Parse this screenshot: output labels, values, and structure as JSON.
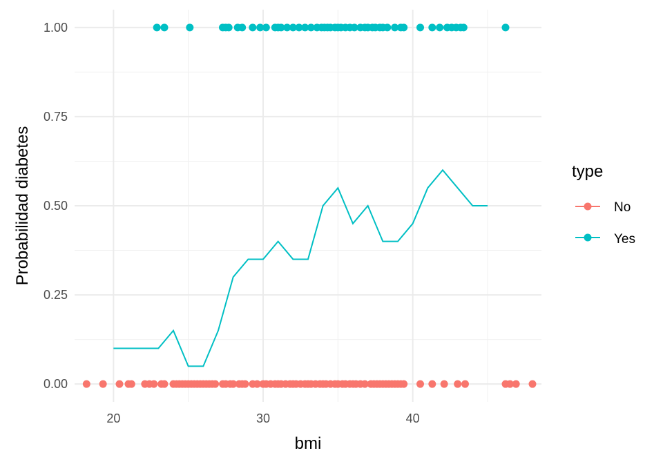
{
  "chart_data": {
    "type": "scatter",
    "xlabel": "bmi",
    "ylabel": "Probabilidad diabetes",
    "xlim": [
      17.4,
      48.6
    ],
    "ylim": [
      -0.05,
      1.05
    ],
    "x_ticks": [
      20,
      30,
      40
    ],
    "x_tick_labels": [
      "20",
      "30",
      "40"
    ],
    "y_ticks": [
      0,
      0.25,
      0.5,
      0.75,
      1.0
    ],
    "y_tick_labels": [
      "0.00",
      "0.25",
      "0.50",
      "0.75",
      "1.00"
    ],
    "grid": true,
    "legend": {
      "title": "type",
      "placement": "right",
      "entries": [
        {
          "label": "No",
          "color": "#F8766D"
        },
        {
          "label": "Yes",
          "color": "#00BFC4"
        }
      ]
    },
    "series": [
      {
        "name": "No",
        "kind": "points",
        "color": "#F8766D",
        "y": 0,
        "x": [
          18.2,
          19.3,
          20.4,
          21.0,
          21.2,
          22.1,
          22.4,
          22.7,
          23.2,
          23.4,
          24.0,
          24.2,
          24.4,
          24.6,
          24.8,
          25.0,
          25.2,
          25.4,
          25.6,
          25.8,
          26.0,
          26.2,
          26.4,
          26.6,
          26.8,
          27.3,
          27.5,
          27.8,
          28.0,
          28.4,
          28.6,
          28.8,
          29.3,
          29.6,
          30.0,
          30.2,
          30.5,
          30.8,
          31.0,
          31.2,
          31.5,
          31.8,
          32.0,
          32.2,
          32.5,
          32.8,
          33.0,
          33.2,
          33.5,
          33.8,
          34.0,
          34.2,
          34.5,
          34.8,
          35.0,
          35.3,
          35.5,
          35.8,
          36.0,
          36.2,
          36.5,
          36.8,
          37.2,
          37.4,
          37.6,
          37.8,
          38.0,
          38.2,
          38.4,
          38.6,
          38.8,
          39.0,
          39.2,
          39.4,
          40.5,
          41.3,
          42.1,
          43.0,
          43.5,
          46.2,
          46.5,
          46.9,
          48.0
        ]
      },
      {
        "name": "Yes",
        "kind": "points",
        "color": "#00BFC4",
        "y": 1,
        "x": [
          22.9,
          23.4,
          25.1,
          27.3,
          27.5,
          27.7,
          28.3,
          28.6,
          29.3,
          29.8,
          30.2,
          30.8,
          31.0,
          31.2,
          31.6,
          32.0,
          32.4,
          32.8,
          33.2,
          33.6,
          33.9,
          34.1,
          34.3,
          34.5,
          34.8,
          35.0,
          35.2,
          35.5,
          35.8,
          36.1,
          36.5,
          36.8,
          37.0,
          37.3,
          37.5,
          37.8,
          38.0,
          38.3,
          38.8,
          39.2,
          39.4,
          40.5,
          41.3,
          41.8,
          42.3,
          42.6,
          42.9,
          43.2,
          43.4,
          46.2
        ]
      },
      {
        "name": "",
        "kind": "line",
        "color": "#00BFC4",
        "x": [
          20,
          21,
          22,
          23,
          24,
          25,
          26,
          27,
          28,
          29,
          30,
          31,
          32,
          33,
          34,
          35,
          36,
          37,
          38,
          39,
          40,
          41,
          42,
          43,
          44,
          45
        ],
        "y": [
          0.1,
          0.1,
          0.1,
          0.1,
          0.15,
          0.05,
          0.05,
          0.15,
          0.3,
          0.35,
          0.35,
          0.4,
          0.35,
          0.35,
          0.5,
          0.55,
          0.45,
          0.5,
          0.4,
          0.4,
          0.45,
          0.55,
          0.6,
          0.55,
          0.5,
          0.5
        ]
      }
    ]
  }
}
